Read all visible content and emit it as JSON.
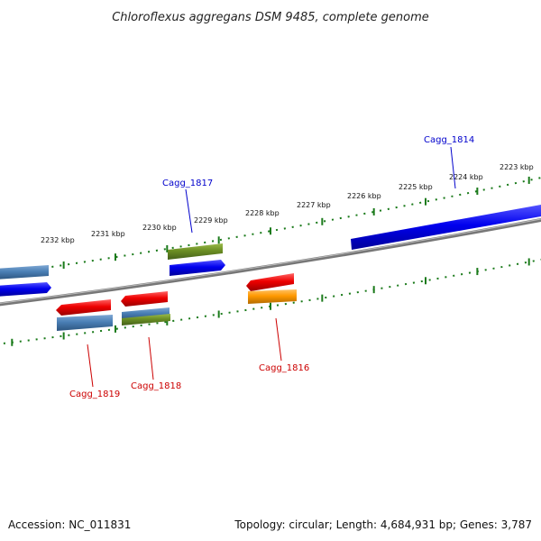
{
  "title": "Chloroflexus aggregans DSM 9485, complete genome",
  "footer": {
    "accession": "Accession: NC_011831",
    "summary": "Topology: circular; Length: 4,684,931 bp; Genes: 3,787"
  },
  "colors": {
    "forward_label": "#0000cc",
    "reverse_label": "#cc0000",
    "tick": "#1a7a1a",
    "backbone": "#888888",
    "blue": "#0000ee",
    "steelblue": "#4a7fb5",
    "olive": "#6b8e23",
    "red": "#ee0000",
    "orange": "#ff9900"
  },
  "tick_labels": [
    "2223 kbp",
    "2224 kbp",
    "2225 kbp",
    "2226 kbp",
    "2227 kbp",
    "2228 kbp",
    "2229 kbp",
    "2230 kbp",
    "2231 kbp",
    "2232 kbp"
  ],
  "gene_labels": {
    "cagg_1814": "Cagg_1814",
    "cagg_1817": "Cagg_1817",
    "cagg_1816": "Cagg_1816",
    "cagg_1818": "Cagg_1818",
    "cagg_1819": "Cagg_1819"
  }
}
